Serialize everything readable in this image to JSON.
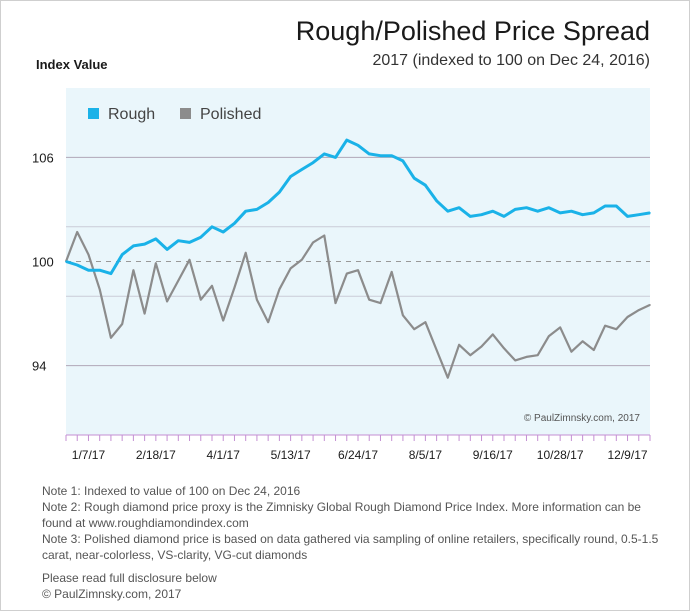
{
  "header": {
    "title": "Rough/Polished Price Spread",
    "subtitle": "2017 (indexed to 100 on Dec 24, 2016)",
    "ylabel": "Index Value"
  },
  "watermark": "© PaulZimnsky.com, 2017",
  "notes": [
    "Note 1: Indexed to value of 100 on Dec 24, 2016",
    "Note 2: Rough diamond price proxy is the Zimnisky Global Rough Diamond Price Index. More information can be found at www.roughdiamondindex.com",
    "Note 3: Polished diamond price is based on data gathered via sampling of online retailers, specifically round, 0.5-1.5 carat, near-colorless, VS-clarity, VG-cut diamonds"
  ],
  "footer": {
    "disclosure": "Please read full disclosure below",
    "copyright": "© PaulZimnsky.com, 2017"
  },
  "colors": {
    "rough": "#1ab2e8",
    "polished": "#8c8c8c",
    "plot_background": "#eaf6fb",
    "gridline": "#b0a7b8",
    "tick": "#c48fd3"
  },
  "chart_data": {
    "type": "line",
    "title": "Rough/Polished Price Spread",
    "subtitle": "2017 (indexed to 100 on Dec 24, 2016)",
    "ylabel": "Index Value",
    "xlabel": "",
    "ylim": [
      90,
      110
    ],
    "yticks": [
      94,
      100,
      106
    ],
    "reference_line": 100,
    "grid": "horizontal",
    "legend": "top-left",
    "x_tick_labels": [
      "1/7/17",
      "2/18/17",
      "4/1/17",
      "5/13/17",
      "6/24/17",
      "8/5/17",
      "9/16/17",
      "10/28/17",
      "12/9/17"
    ],
    "x": [
      "12/24/16",
      "12/31/16",
      "1/7/17",
      "1/14/17",
      "1/21/17",
      "1/28/17",
      "2/4/17",
      "2/11/17",
      "2/18/17",
      "2/25/17",
      "3/4/17",
      "3/11/17",
      "3/18/17",
      "3/25/17",
      "4/1/17",
      "4/8/17",
      "4/15/17",
      "4/22/17",
      "4/29/17",
      "5/6/17",
      "5/13/17",
      "5/20/17",
      "5/27/17",
      "6/3/17",
      "6/10/17",
      "6/17/17",
      "6/24/17",
      "7/1/17",
      "7/8/17",
      "7/15/17",
      "7/22/17",
      "7/29/17",
      "8/5/17",
      "8/12/17",
      "8/19/17",
      "8/26/17",
      "9/2/17",
      "9/9/17",
      "9/16/17",
      "9/23/17",
      "9/30/17",
      "10/7/17",
      "10/14/17",
      "10/21/17",
      "10/28/17",
      "11/4/17",
      "11/11/17",
      "11/18/17",
      "11/25/17",
      "12/2/17",
      "12/9/17",
      "12/16/17",
      "12/23/17"
    ],
    "series": [
      {
        "name": "Rough",
        "color": "#1ab2e8",
        "values": [
          100.0,
          99.8,
          99.5,
          99.5,
          99.3,
          100.4,
          100.9,
          101.0,
          101.3,
          100.7,
          101.2,
          101.1,
          101.4,
          102.0,
          101.7,
          102.2,
          102.9,
          103.0,
          103.4,
          104.0,
          104.9,
          105.3,
          105.7,
          106.2,
          106.0,
          107.0,
          106.7,
          106.2,
          106.1,
          106.1,
          105.8,
          104.8,
          104.4,
          103.5,
          102.9,
          103.1,
          102.6,
          102.7,
          102.9,
          102.6,
          103.0,
          103.1,
          102.9,
          103.1,
          102.8,
          102.9,
          102.7,
          102.8,
          103.2,
          103.2,
          102.6,
          102.7,
          102.8
        ]
      },
      {
        "name": "Polished",
        "color": "#8c8c8c",
        "values": [
          100.0,
          101.7,
          100.4,
          98.4,
          95.6,
          96.4,
          99.5,
          97.0,
          99.9,
          97.7,
          98.9,
          100.1,
          97.8,
          98.6,
          96.6,
          98.5,
          100.5,
          97.8,
          96.5,
          98.4,
          99.6,
          100.1,
          101.1,
          101.5,
          97.6,
          99.3,
          99.5,
          97.8,
          97.6,
          99.4,
          96.9,
          96.1,
          96.5,
          94.9,
          93.3,
          95.2,
          94.6,
          95.1,
          95.8,
          95.0,
          94.3,
          94.5,
          94.6,
          95.7,
          96.2,
          94.8,
          95.4,
          94.9,
          96.3,
          96.1,
          96.8,
          97.2,
          97.5
        ]
      }
    ]
  }
}
